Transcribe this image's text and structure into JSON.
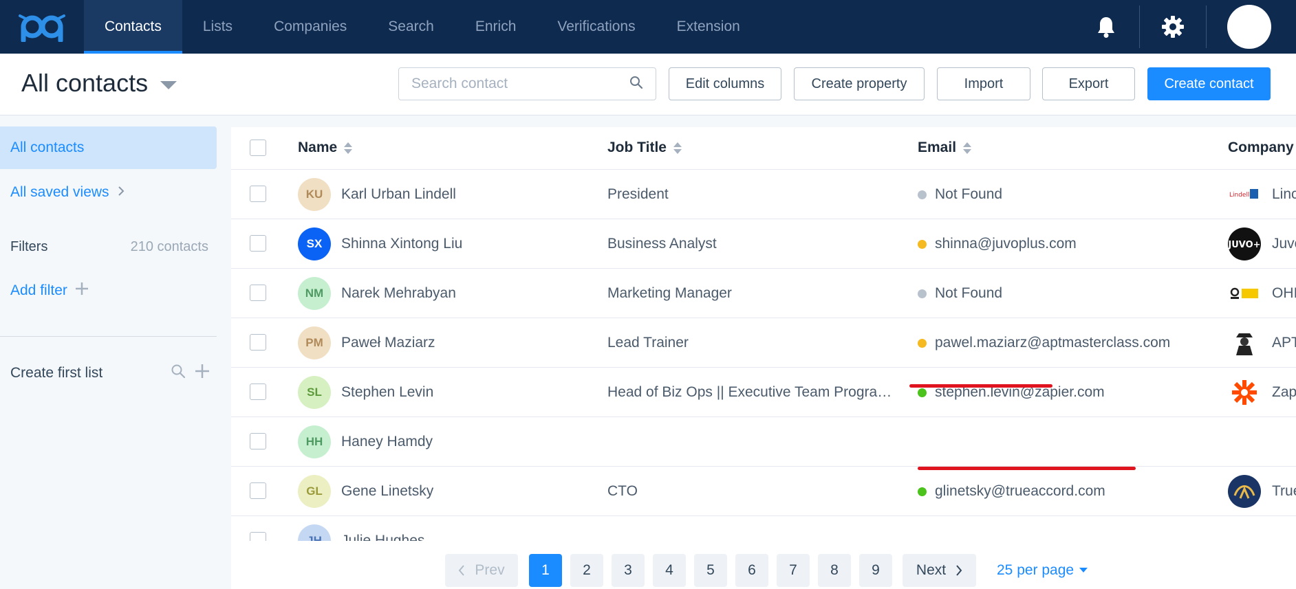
{
  "nav": {
    "tabs": [
      {
        "label": "Contacts",
        "active": true
      },
      {
        "label": "Lists",
        "active": false
      },
      {
        "label": "Companies",
        "active": false
      },
      {
        "label": "Search",
        "active": false
      },
      {
        "label": "Enrich",
        "active": false
      },
      {
        "label": "Verifications",
        "active": false
      },
      {
        "label": "Extension",
        "active": false
      }
    ]
  },
  "toolbar": {
    "title": "All contacts",
    "search_placeholder": "Search contact",
    "edit_columns": "Edit columns",
    "create_property": "Create property",
    "import": "Import",
    "export": "Export",
    "create_contact": "Create contact"
  },
  "sidebar": {
    "all_contacts": "All contacts",
    "all_saved_views": "All saved views",
    "filters_label": "Filters",
    "filters_count": "210 contacts",
    "add_filter": "Add filter",
    "create_first_list": "Create first list"
  },
  "table": {
    "headers": {
      "name": "Name",
      "job_title": "Job Title",
      "email": "Email",
      "company": "Company"
    },
    "rows": [
      {
        "initials": "KU",
        "name": "Karl Urban Lindell",
        "job": "President",
        "email": "Not Found",
        "email_status": "not-found",
        "company": "Linc",
        "avatar_bg": "#f1dfc3",
        "avatar_fg": "#b08a5a"
      },
      {
        "initials": "SX",
        "name": "Shinna Xintong Liu",
        "job": "Business Analyst",
        "email": "shinna@juvoplus.com",
        "email_status": "risky",
        "company": "Juvo",
        "avatar_bg": "#0b63f6",
        "avatar_fg": "#ffffff"
      },
      {
        "initials": "NM",
        "name": "Narek Mehrabyan",
        "job": "Marketing Manager",
        "email": "Not Found",
        "email_status": "not-found",
        "company": "OHI",
        "avatar_bg": "#c6efd0",
        "avatar_fg": "#4f9a62"
      },
      {
        "initials": "PM",
        "name": "Paweł Maziarz",
        "job": "Lead Trainer",
        "email": "pawel.maziarz@aptmasterclass.com",
        "email_status": "risky",
        "company": "APT",
        "avatar_bg": "#f1dfc3",
        "avatar_fg": "#b08a5a"
      },
      {
        "initials": "SL",
        "name": "Stephen Levin",
        "job": "Head of Biz Ops || Executive Team Programs",
        "email": "stephen.levin@zapier.com",
        "email_status": "valid",
        "company": "Zap",
        "avatar_bg": "#d6f0c2",
        "avatar_fg": "#5d9a3a"
      },
      {
        "initials": "HH",
        "name": "Haney Hamdy",
        "job": "",
        "email": "",
        "email_status": "",
        "company": "",
        "avatar_bg": "#c6efd0",
        "avatar_fg": "#4f9a62"
      },
      {
        "initials": "GL",
        "name": "Gene Linetsky",
        "job": "CTO",
        "email": "glinetsky@trueaccord.com",
        "email_status": "valid",
        "company": "True",
        "avatar_bg": "#ecefc2",
        "avatar_fg": "#9a9a3a"
      },
      {
        "initials": "JH",
        "name": "Julie Hughes",
        "job": "",
        "email": "",
        "email_status": "",
        "company": "",
        "avatar_bg": "#c5d8f3",
        "avatar_fg": "#4a74b6"
      }
    ]
  },
  "status_colors": {
    "not-found": "#b8c2cc",
    "risky": "#f5b921",
    "valid": "#4cc21c"
  },
  "pagination": {
    "prev": "Prev",
    "next": "Next",
    "pages": [
      "1",
      "2",
      "3",
      "4",
      "5",
      "6",
      "7",
      "8",
      "9"
    ],
    "current": "1",
    "per_page": "25 per page"
  }
}
